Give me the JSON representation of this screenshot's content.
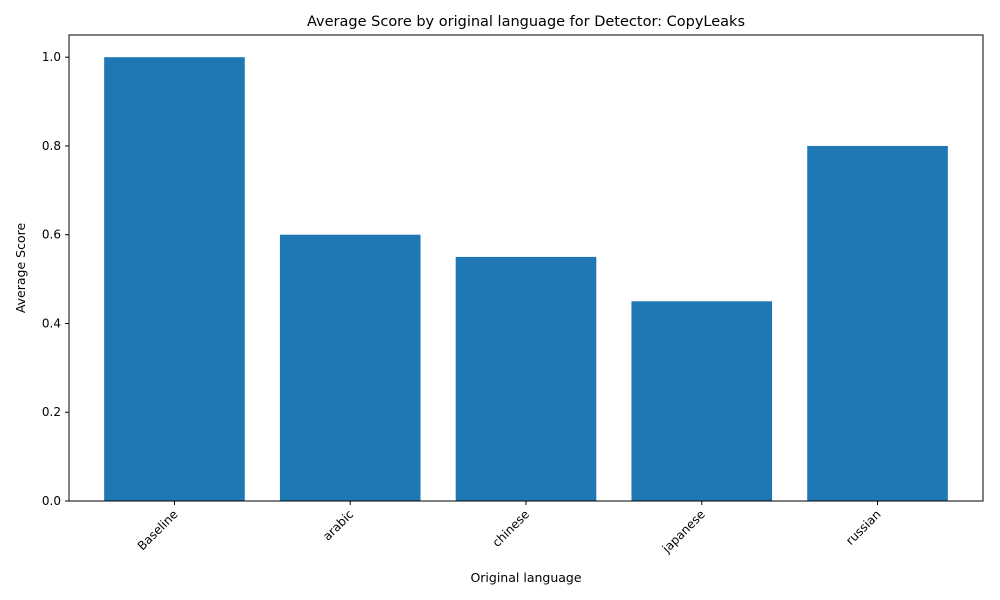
{
  "chart_data": {
    "type": "bar",
    "title": "Average Score by original language for Detector: CopyLeaks",
    "xlabel": "Original language",
    "ylabel": "Average Score",
    "categories": [
      "Baseline",
      "arabic",
      "chinese",
      "japanese",
      "russian"
    ],
    "values": [
      1.0,
      0.6,
      0.55,
      0.45,
      0.8
    ],
    "ylim": [
      0,
      1.05
    ],
    "yticks": [
      0.0,
      0.2,
      0.4,
      0.6,
      0.8,
      1.0
    ],
    "ytick_labels": [
      "0.0",
      "0.2",
      "0.4",
      "0.6",
      "0.8",
      "1.0"
    ],
    "bar_color": "#1f77b4",
    "grid": false,
    "legend": "none"
  }
}
